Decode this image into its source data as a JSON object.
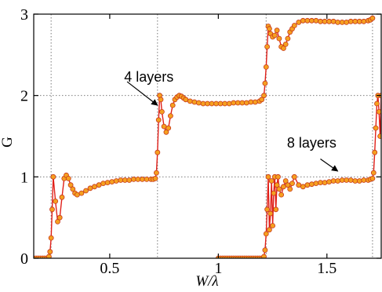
{
  "chart_data": {
    "type": "line",
    "title": "",
    "xlabel": "W/λ",
    "ylabel": "G",
    "xlim": [
      0.15,
      1.75
    ],
    "ylim": [
      0,
      3
    ],
    "grid": true,
    "x_ticks": [
      {
        "v": 0.5,
        "label": "0.5"
      },
      {
        "v": 1.0,
        "label": "1"
      },
      {
        "v": 1.5,
        "label": "1.5"
      }
    ],
    "y_ticks": [
      {
        "v": 0,
        "label": "0"
      },
      {
        "v": 1,
        "label": "1"
      },
      {
        "v": 2,
        "label": "2"
      },
      {
        "v": 3,
        "label": "3"
      }
    ],
    "grid_x": [
      0.23,
      0.72,
      1.22,
      1.71
    ],
    "grid_y": [
      1,
      2
    ],
    "colors": {
      "line": "#e0201a",
      "marker_fill": "#f5a020",
      "marker_stroke": "#c8391a"
    },
    "annotations": [
      {
        "text": "4 layers",
        "x": 0.68,
        "y": 2.17,
        "arrow_from": [
          0.58,
          2.17
        ],
        "arrow_to": [
          0.72,
          1.88
        ]
      },
      {
        "text": "8 layers",
        "x": 1.43,
        "y": 1.36,
        "arrow_from": [
          1.47,
          1.22
        ],
        "arrow_to": [
          1.55,
          1.07
        ]
      }
    ],
    "series": [
      {
        "x": [
          0.15,
          0.16,
          0.17,
          0.18,
          0.19,
          0.2,
          0.21,
          0.22,
          0.225,
          0.23,
          0.235,
          0.24,
          0.25,
          0.26,
          0.27,
          0.28,
          0.29,
          0.3,
          0.31,
          0.32,
          0.33,
          0.34,
          0.35,
          0.37,
          0.39,
          0.41,
          0.43,
          0.45,
          0.47,
          0.49,
          0.51,
          0.53,
          0.55,
          0.57,
          0.59,
          0.61,
          0.63,
          0.65,
          0.67,
          0.69,
          0.7,
          0.71,
          0.715,
          0.72,
          0.725,
          0.73,
          0.735,
          0.74,
          0.75,
          0.76,
          0.77,
          0.78,
          0.79,
          0.8,
          0.81,
          0.82,
          0.83,
          0.84,
          0.85,
          0.87,
          0.89,
          0.91,
          0.93,
          0.95,
          0.97,
          0.99,
          1.01,
          1.03,
          1.05,
          1.07,
          1.09,
          1.11,
          1.13,
          1.15,
          1.17,
          1.19,
          1.2,
          1.21,
          1.215,
          1.22,
          1.225,
          1.23,
          1.235,
          1.24,
          1.25,
          1.26,
          1.27,
          1.28,
          1.29,
          1.3,
          1.31,
          1.32,
          1.33,
          1.34,
          1.35,
          1.37,
          1.39,
          1.41,
          1.43,
          1.45,
          1.47,
          1.49,
          1.51,
          1.53,
          1.55,
          1.57,
          1.59,
          1.61,
          1.63,
          1.65,
          1.67,
          1.69,
          1.7,
          1.71
        ],
        "y": [
          0,
          0,
          0,
          0,
          0,
          0,
          0,
          0.02,
          0.08,
          0.25,
          0.6,
          1.0,
          0.7,
          0.45,
          0.5,
          0.75,
          0.98,
          1.02,
          0.98,
          0.9,
          0.85,
          0.8,
          0.78,
          0.8,
          0.83,
          0.86,
          0.88,
          0.9,
          0.92,
          0.93,
          0.94,
          0.95,
          0.96,
          0.96,
          0.96,
          0.97,
          0.97,
          0.97,
          0.97,
          0.97,
          0.97,
          0.98,
          1.05,
          1.3,
          1.7,
          2.0,
          1.95,
          1.8,
          1.62,
          1.55,
          1.6,
          1.75,
          1.88,
          1.95,
          1.98,
          2.0,
          1.99,
          1.97,
          1.95,
          1.93,
          1.92,
          1.91,
          1.9,
          1.9,
          1.9,
          1.9,
          1.9,
          1.9,
          1.9,
          1.91,
          1.91,
          1.91,
          1.91,
          1.92,
          1.92,
          1.93,
          1.95,
          2.0,
          2.15,
          2.35,
          2.6,
          2.85,
          2.82,
          2.76,
          2.72,
          2.74,
          2.8,
          2.7,
          2.6,
          2.58,
          2.63,
          2.7,
          2.78,
          2.82,
          2.86,
          2.9,
          2.92,
          2.92,
          2.92,
          2.92,
          2.91,
          2.91,
          2.91,
          2.91,
          2.9,
          2.9,
          2.9,
          2.91,
          2.91,
          2.91,
          2.91,
          2.92,
          2.93,
          2.95
        ]
      },
      {
        "x": [
          1.0,
          1.01,
          1.02,
          1.03,
          1.04,
          1.05,
          1.06,
          1.07,
          1.08,
          1.09,
          1.1,
          1.11,
          1.12,
          1.13,
          1.14,
          1.15,
          1.16,
          1.17,
          1.18,
          1.19,
          1.2,
          1.21,
          1.215,
          1.22,
          1.225,
          1.23,
          1.235,
          1.24,
          1.245,
          1.25,
          1.255,
          1.26,
          1.265,
          1.27,
          1.275,
          1.28,
          1.29,
          1.3,
          1.31,
          1.32,
          1.33,
          1.34,
          1.35,
          1.37,
          1.39,
          1.41,
          1.43,
          1.45,
          1.47,
          1.49,
          1.51,
          1.53,
          1.55,
          1.57,
          1.59,
          1.61,
          1.63,
          1.65,
          1.67,
          1.69,
          1.7,
          1.71,
          1.715,
          1.72,
          1.725,
          1.73,
          1.735,
          1.74,
          1.745,
          1.75
        ],
        "y": [
          0,
          0,
          0,
          0,
          0,
          0,
          0,
          0,
          0,
          0,
          0,
          0,
          0,
          0,
          0,
          0,
          0,
          0,
          0,
          0,
          0,
          0.02,
          0.1,
          0.3,
          0.6,
          1.0,
          0.35,
          0.55,
          0.95,
          0.4,
          0.8,
          1.0,
          0.6,
          0.9,
          1.0,
          0.85,
          0.78,
          0.88,
          0.95,
          0.9,
          0.85,
          0.92,
          1.0,
          0.9,
          0.88,
          0.9,
          0.91,
          0.92,
          0.93,
          0.93,
          0.94,
          0.95,
          0.95,
          0.96,
          0.96,
          0.96,
          0.95,
          0.95,
          0.96,
          0.96,
          0.97,
          0.98,
          1.05,
          1.3,
          1.6,
          1.9,
          2.0,
          1.8,
          1.5,
          2.0
        ]
      }
    ]
  }
}
